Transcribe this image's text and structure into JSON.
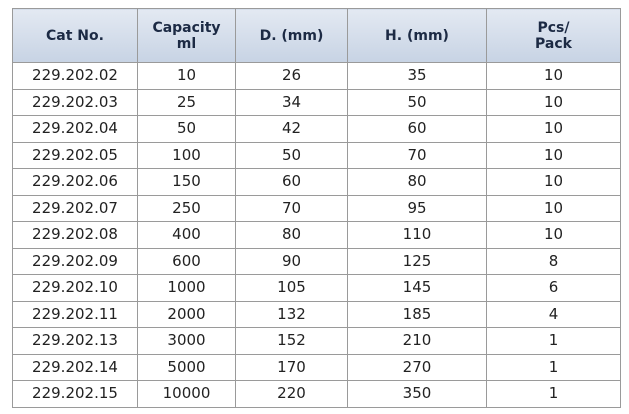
{
  "table": {
    "header": [
      "Cat No.",
      "Capacity\nml",
      "D. (mm)",
      "H. (mm)",
      "Pcs/\nPack"
    ],
    "rows": [
      [
        "229.202.02",
        10,
        26,
        35,
        10
      ],
      [
        "229.202.03",
        25,
        34,
        50,
        10
      ],
      [
        "229.202.04",
        50,
        42,
        60,
        10
      ],
      [
        "229.202.05",
        100,
        50,
        70,
        10
      ],
      [
        "229.202.06",
        150,
        60,
        80,
        10
      ],
      [
        "229.202.07",
        250,
        70,
        95,
        10
      ],
      [
        "229.202.08",
        400,
        80,
        110,
        10
      ],
      [
        "229.202.09",
        600,
        90,
        125,
        8
      ],
      [
        "229.202.10",
        1000,
        105,
        145,
        6
      ],
      [
        "229.202.11",
        2000,
        132,
        185,
        4
      ],
      [
        "229.202.13",
        3000,
        152,
        210,
        1
      ],
      [
        "229.202.14",
        5000,
        170,
        270,
        1
      ],
      [
        "229.202.15",
        10000,
        220,
        350,
        1
      ]
    ]
  }
}
